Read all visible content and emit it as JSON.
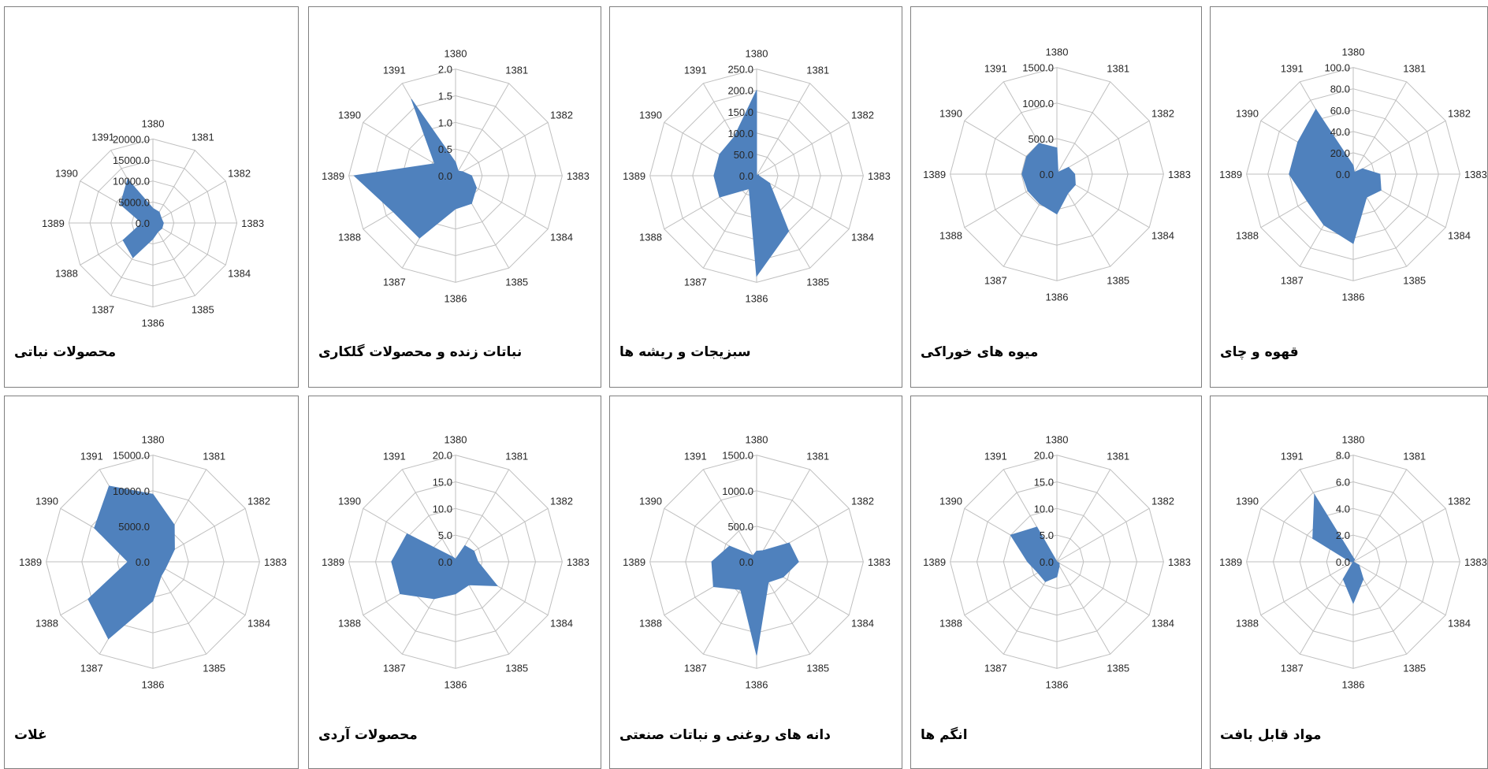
{
  "axis_categories": [
    "1380",
    "1381",
    "1382",
    "1383",
    "1384",
    "1385",
    "1386",
    "1387",
    "1388",
    "1389",
    "1390",
    "1391"
  ],
  "series_color": "#4f81bd",
  "chart_data": [
    {
      "type": "radar",
      "title": "محصولات نباتی",
      "ticks": [
        "0.0",
        "5000.0",
        "10000.0",
        "15000.0",
        "20000.0"
      ],
      "rmax": 20000,
      "values": [
        3500,
        3000,
        2300,
        2500,
        2500,
        2400,
        3800,
        9500,
        8200,
        2600,
        8900,
        12000
      ]
    },
    {
      "type": "radar",
      "title": "نباتات زنده و محصولات گلکاری",
      "ticks": [
        "0.0",
        "0.5",
        "1.0",
        "1.5",
        "2.0"
      ],
      "rmax": 2.0,
      "values": [
        0.25,
        0.1,
        0.15,
        0.3,
        0.45,
        0.6,
        0.62,
        1.35,
        1.35,
        1.9,
        0.45,
        1.65
      ]
    },
    {
      "type": "radar",
      "title": "سبزیجات و ریشه ها",
      "ticks": [
        "0.0",
        "50.0",
        "100.0",
        "150.0",
        "200.0",
        "250.0"
      ],
      "rmax": 250,
      "values": [
        200,
        0,
        5,
        5,
        35,
        150,
        235,
        35,
        100,
        100,
        100,
        105
      ]
    },
    {
      "type": "radar",
      "title": "میوه های خوراکی",
      "ticks": [
        "0.0",
        "500.0",
        "1000.0",
        "1500.0"
      ],
      "rmax": 1500,
      "values": [
        370,
        30,
        190,
        250,
        300,
        310,
        560,
        480,
        470,
        490,
        490,
        500
      ]
    },
    {
      "type": "radar",
      "title": "قهوه و چای",
      "ticks": [
        "0.0",
        "20.0",
        "40.0",
        "60.0",
        "80.0",
        "100.0"
      ],
      "rmax": 100,
      "values": [
        8,
        2,
        10,
        25,
        30,
        25,
        65,
        55,
        50,
        60,
        60,
        70
      ]
    },
    {
      "type": "radar",
      "title": "غلات",
      "ticks": [
        "0.0",
        "5000.0",
        "10000.0",
        "15000.0"
      ],
      "rmax": 15000,
      "values": [
        9500,
        6000,
        3500,
        2200,
        2000,
        2300,
        5500,
        12500,
        10500,
        3500,
        9500,
        12300
      ]
    },
    {
      "type": "radar",
      "title": "محصولات آردی",
      "ticks": [
        "0.0",
        "5.0",
        "10.0",
        "15.0",
        "20.0"
      ],
      "rmax": 20,
      "values": [
        0.5,
        3.5,
        4.0,
        4.2,
        9.0,
        5.0,
        6.0,
        8.0,
        12.0,
        12.0,
        10.5,
        1.0
      ]
    },
    {
      "type": "radar",
      "title": "دانه های روغنی و نباتات صنعتی",
      "ticks": [
        "0.0",
        "500.0",
        "1000.0",
        "1500.0"
      ],
      "rmax": 1500,
      "values": [
        150,
        180,
        530,
        590,
        430,
        330,
        1310,
        450,
        700,
        630,
        440,
        100
      ]
    },
    {
      "type": "radar",
      "title": "انگم ها",
      "ticks": [
        "0.0",
        "5.0",
        "10.0",
        "15.0",
        "20.0"
      ],
      "rmax": 20,
      "values": [
        0,
        0,
        0,
        0,
        0.5,
        0.9,
        2.8,
        4.3,
        4.1,
        5.5,
        10.0,
        7.5
      ]
    },
    {
      "type": "radar",
      "title": "مواد قابل بافت",
      "ticks": [
        "0.0",
        "2.0",
        "4.0",
        "6.0",
        "8.0"
      ],
      "rmax": 8,
      "values": [
        0.3,
        0.2,
        0,
        0,
        0.5,
        1.5,
        3.1,
        1.5,
        0,
        0.2,
        3.5,
        5.8
      ]
    }
  ]
}
